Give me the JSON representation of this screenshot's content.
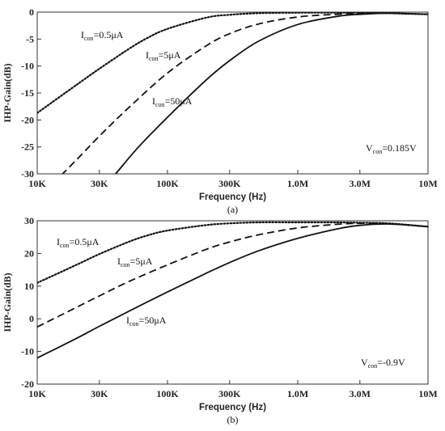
{
  "chart_data": [
    {
      "type": "line",
      "caption": "(a)",
      "xlabel": "Frequency (Hz)",
      "ylabel": "IHP-Gain(dB)",
      "xscale": "log",
      "xlim": [
        10000,
        10000000
      ],
      "ylim": [
        -30,
        0
      ],
      "x_ticks": [
        10000,
        30000,
        100000,
        300000,
        1000000,
        3000000,
        10000000
      ],
      "x_tick_labels": [
        "10K",
        "30K",
        "100K",
        "300K",
        "1.0M",
        "3.0M",
        "10M"
      ],
      "y_ticks": [
        0,
        -5,
        -10,
        -15,
        -20,
        -25,
        -30
      ],
      "y_tick_labels": [
        "0",
        "-5",
        "-10",
        "-15",
        "-20",
        "-25",
        "-30"
      ],
      "grid": false,
      "annotation": {
        "main": "V",
        "sub": "con",
        "tail": "=0.185V"
      },
      "series": [
        {
          "label": {
            "main": "I",
            "sub": "con",
            "tail": "=0.5μA"
          },
          "style": "dotted",
          "x": [
            10000,
            20000,
            30000,
            50000,
            70000,
            100000,
            200000,
            300000,
            500000,
            1000000,
            2000000,
            3000000,
            5000000,
            10000000
          ],
          "y": [
            -18.7,
            -13.5,
            -10.5,
            -6.9,
            -4.8,
            -3.1,
            -1.0,
            -0.5,
            -0.2,
            -0.1,
            -0.1,
            -0.1,
            -0.2,
            -0.4
          ]
        },
        {
          "label": {
            "main": "I",
            "sub": "con",
            "tail": "=5μA"
          },
          "style": "dashed",
          "x": [
            10000,
            20000,
            30000,
            50000,
            100000,
            200000,
            300000,
            500000,
            1000000,
            2000000,
            3000000,
            5000000,
            10000000
          ],
          "y": [
            -34.7,
            -27.4,
            -23.0,
            -17.8,
            -11.3,
            -6.2,
            -4.0,
            -2.2,
            -0.9,
            -0.4,
            -0.2,
            -0.2,
            -0.4
          ]
        },
        {
          "label": {
            "main": "I",
            "sub": "con",
            "tail": "=50μA"
          },
          "style": "solid",
          "x": [
            30000,
            40000,
            60000,
            100000,
            200000,
            300000,
            500000,
            1000000,
            2000000,
            3000000,
            5000000,
            7000000,
            10000000
          ],
          "y": [
            -33.5,
            -30.0,
            -25.0,
            -19.5,
            -12.5,
            -9.0,
            -5.4,
            -2.3,
            -0.8,
            -0.4,
            -0.2,
            -0.3,
            -0.4
          ]
        }
      ]
    },
    {
      "type": "line",
      "caption": "(b)",
      "xlabel": "Frequency (Hz)",
      "ylabel": "IHP-Gain(dB)",
      "xscale": "log",
      "xlim": [
        10000,
        10000000
      ],
      "ylim": [
        -20,
        30
      ],
      "x_ticks": [
        10000,
        30000,
        100000,
        300000,
        1000000,
        3000000,
        10000000
      ],
      "x_tick_labels": [
        "10K",
        "30K",
        "100K",
        "300K",
        "1.0M",
        "3.0M",
        "10M"
      ],
      "y_ticks": [
        30,
        20,
        10,
        0,
        -10,
        -20
      ],
      "y_tick_labels": [
        "30",
        "20",
        "10",
        "0",
        "-10",
        "-20"
      ],
      "grid": false,
      "annotation": {
        "main": "V",
        "sub": "con",
        "tail": "=-0.9V"
      },
      "series": [
        {
          "label": {
            "main": "I",
            "sub": "con",
            "tail": "=0.5μA"
          },
          "style": "dotted",
          "x": [
            10000,
            20000,
            30000,
            50000,
            70000,
            100000,
            200000,
            300000,
            500000,
            1000000,
            2000000,
            3000000,
            5000000,
            10000000
          ],
          "y": [
            11.0,
            16.5,
            19.8,
            23.5,
            25.5,
            27.0,
            28.7,
            29.2,
            29.5,
            29.5,
            29.5,
            29.4,
            29.2,
            28.2
          ]
        },
        {
          "label": {
            "main": "I",
            "sub": "con",
            "tail": "=5μA"
          },
          "style": "dashed",
          "x": [
            10000,
            20000,
            30000,
            50000,
            100000,
            200000,
            300000,
            500000,
            1000000,
            2000000,
            3000000,
            5000000,
            10000000
          ],
          "y": [
            -2.5,
            3.5,
            7.0,
            11.3,
            16.5,
            21.3,
            23.5,
            25.7,
            27.8,
            28.9,
            29.2,
            29.1,
            28.2
          ]
        },
        {
          "label": {
            "main": "I",
            "sub": "con",
            "tail": "=50μA"
          },
          "style": "solid",
          "x": [
            10000,
            20000,
            30000,
            50000,
            100000,
            200000,
            300000,
            500000,
            1000000,
            2000000,
            3000000,
            5000000,
            10000000
          ],
          "y": [
            -12.0,
            -6.0,
            -2.3,
            2.2,
            8.2,
            14.0,
            17.2,
            20.8,
            24.6,
            27.5,
            28.6,
            29.0,
            28.2
          ]
        }
      ]
    }
  ]
}
